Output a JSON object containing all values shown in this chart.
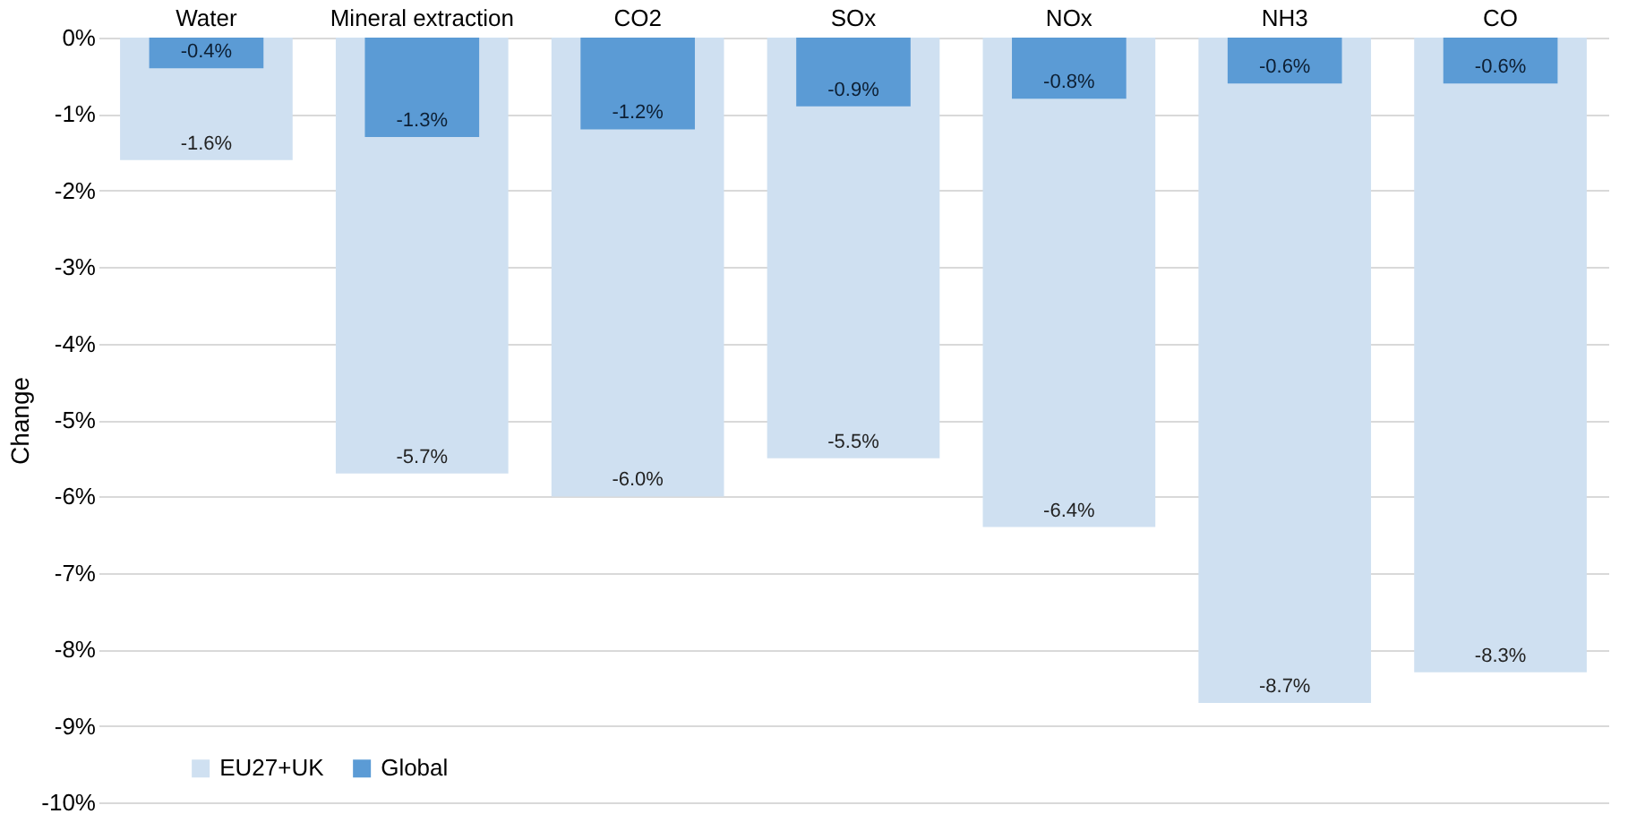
{
  "chart_data": {
    "type": "bar",
    "ylabel": "Change",
    "categories": [
      "Water",
      "Mineral extraction",
      "CO2",
      "SOx",
      "NOx",
      "NH3",
      "CO"
    ],
    "series": [
      {
        "name": "EU27+UK",
        "color": "#cfe0f1",
        "values": [
          -1.6,
          -5.7,
          -6.0,
          -5.5,
          -6.4,
          -8.7,
          -8.3
        ],
        "value_labels": [
          "-1.6%",
          "-5.7%",
          "-6.0%",
          "-5.5%",
          "-6.4%",
          "-8.7%",
          "-8.3%"
        ]
      },
      {
        "name": "Global",
        "color": "#5b9bd5",
        "values": [
          -0.4,
          -1.3,
          -1.2,
          -0.9,
          -0.8,
          -0.6,
          -0.6
        ],
        "value_labels": [
          "-0.4%",
          "-1.3%",
          "-1.2%",
          "-0.9%",
          "-0.8%",
          "-0.6%",
          "-0.6%"
        ]
      }
    ],
    "ylim": [
      -10,
      0
    ],
    "yticks": [
      {
        "value": 0,
        "label": "0%"
      },
      {
        "value": -1,
        "label": "-1%"
      },
      {
        "value": -2,
        "label": "-2%"
      },
      {
        "value": -3,
        "label": "-3%"
      },
      {
        "value": -4,
        "label": "-4%"
      },
      {
        "value": -5,
        "label": "-5%"
      },
      {
        "value": -6,
        "label": "-6%"
      },
      {
        "value": -7,
        "label": "-7%"
      },
      {
        "value": -8,
        "label": "-8%"
      },
      {
        "value": -9,
        "label": "-9%"
      },
      {
        "value": -10,
        "label": "-10%"
      }
    ],
    "grid": "y",
    "legend": "bottom left"
  }
}
